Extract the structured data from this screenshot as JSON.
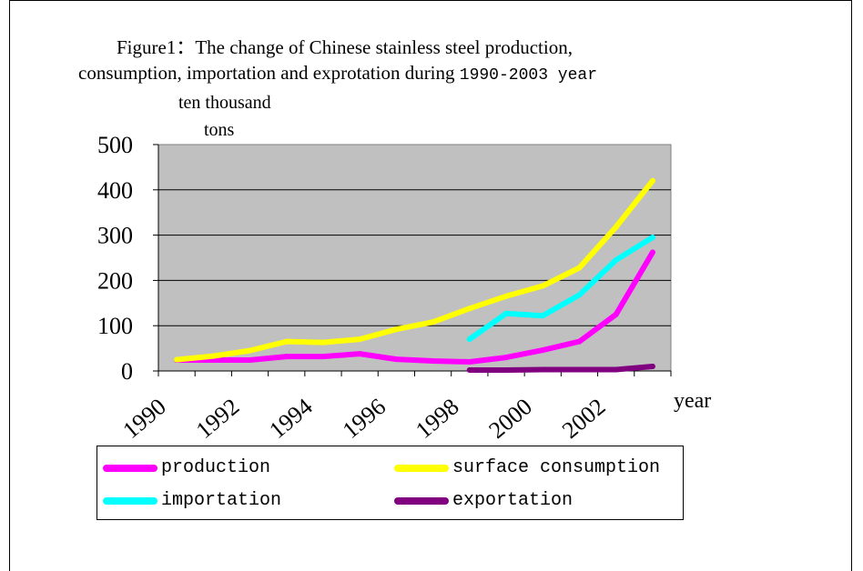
{
  "title_line1": "Figure1：The change of Chinese stainless steel production,",
  "title_line2_prefix": "consumption, importation and exprotation during ",
  "title_line2_suffix": "1990-2003 year",
  "chart_data": {
    "type": "line",
    "title": "Figure1：The change of Chinese stainless steel production, consumption, importation and exprotation during 1990-2003 year",
    "ylabel_line1": "ten thousand",
    "ylabel_line2": "tons",
    "xlabel": "year",
    "x": [
      1990,
      1991,
      1992,
      1993,
      1994,
      1995,
      1996,
      1997,
      1998,
      1999,
      2000,
      2001,
      2002,
      2003
    ],
    "x_tick_labels": [
      "1990",
      "1992",
      "1994",
      "1996",
      "1998",
      "2000",
      "2002"
    ],
    "y_tick_labels": [
      "0",
      "100",
      "200",
      "300",
      "400",
      "500"
    ],
    "ylim": [
      0,
      500
    ],
    "grid": true,
    "legend_position": "bottom",
    "plot_background": "#c0c0c0",
    "series": [
      {
        "name": "production",
        "color": "#ff00ff",
        "values": [
          24,
          24,
          24,
          32,
          32,
          38,
          26,
          22,
          20,
          30,
          46,
          65,
          125,
          262
        ]
      },
      {
        "name": "surface consumption",
        "color": "#ffff00",
        "values": [
          25,
          33,
          45,
          65,
          63,
          70,
          92,
          108,
          138,
          165,
          188,
          228,
          318,
          420
        ]
      },
      {
        "name": "importation",
        "color": "#00ffff",
        "values": [
          null,
          null,
          null,
          null,
          null,
          null,
          null,
          null,
          70,
          127,
          122,
          168,
          245,
          295
        ]
      },
      {
        "name": "exportation",
        "color": "#800080",
        "values": [
          null,
          null,
          null,
          null,
          null,
          null,
          null,
          null,
          2,
          2,
          3,
          3,
          3,
          10
        ]
      }
    ]
  }
}
